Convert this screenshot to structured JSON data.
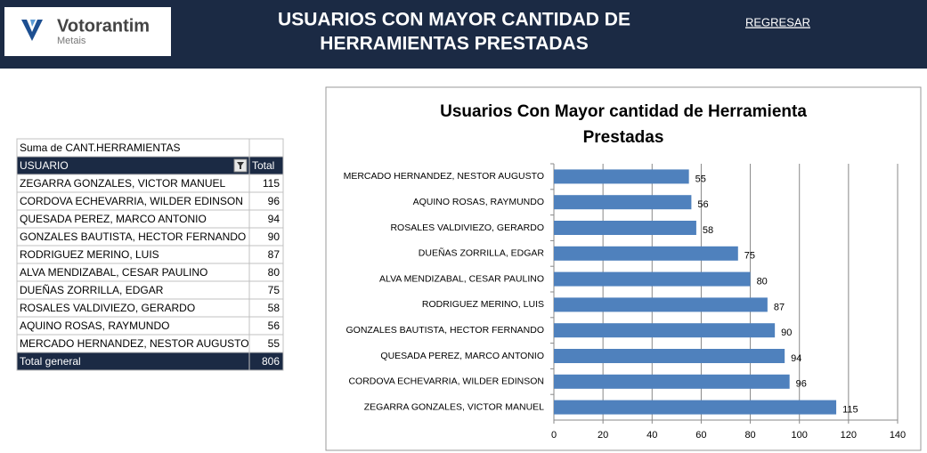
{
  "header": {
    "logo": {
      "name": "Votorantim",
      "sub": "Metais"
    },
    "title": [
      "USUARIOS CON MAYOR CANTIDAD DE",
      "HERRAMIENTAS PRESTADAS"
    ],
    "link": "REGRESAR"
  },
  "table": {
    "caption": "Suma de CANT.HERRAMIENTAS",
    "columns": [
      "USUARIO",
      "Total"
    ],
    "rows": [
      [
        "ZEGARRA GONZALES, VICTOR MANUEL",
        "115"
      ],
      [
        "CORDOVA ECHEVARRIA, WILDER EDINSON",
        "96"
      ],
      [
        "QUESADA PEREZ, MARCO ANTONIO",
        "94"
      ],
      [
        "GONZALES BAUTISTA, HECTOR FERNANDO",
        "90"
      ],
      [
        "RODRIGUEZ MERINO, LUIS",
        "87"
      ],
      [
        "ALVA MENDIZABAL, CESAR PAULINO",
        "80"
      ],
      [
        "DUEÑAS ZORRILLA, EDGAR",
        "75"
      ],
      [
        "ROSALES VALDIVIEZO, GERARDO",
        "58"
      ],
      [
        "AQUINO ROSAS, RAYMUNDO",
        "56"
      ],
      [
        "MERCADO HERNANDEZ, NESTOR AUGUSTO",
        "55"
      ]
    ],
    "total": [
      "Total general",
      "806"
    ]
  },
  "chart_data": {
    "type": "hbar",
    "title": [
      "Usuarios Con Mayor cantidad de Herramienta",
      "Prestadas"
    ],
    "categories": [
      "MERCADO HERNANDEZ, NESTOR AUGUSTO",
      "AQUINO ROSAS, RAYMUNDO",
      "ROSALES VALDIVIEZO, GERARDO",
      "DUEÑAS ZORRILLA, EDGAR",
      "ALVA MENDIZABAL, CESAR PAULINO",
      "RODRIGUEZ MERINO, LUIS",
      "GONZALES BAUTISTA, HECTOR FERNANDO",
      "QUESADA PEREZ, MARCO ANTONIO",
      "CORDOVA ECHEVARRIA, WILDER EDINSON",
      "ZEGARRA GONZALES, VICTOR MANUEL"
    ],
    "values": [
      55,
      56,
      58,
      75,
      80,
      87,
      90,
      94,
      96,
      115
    ],
    "color": "#4f81bd",
    "xlim": [
      0,
      140
    ],
    "xticks": [
      0,
      20,
      40,
      60,
      80,
      100,
      120,
      140
    ],
    "grid": true
  }
}
